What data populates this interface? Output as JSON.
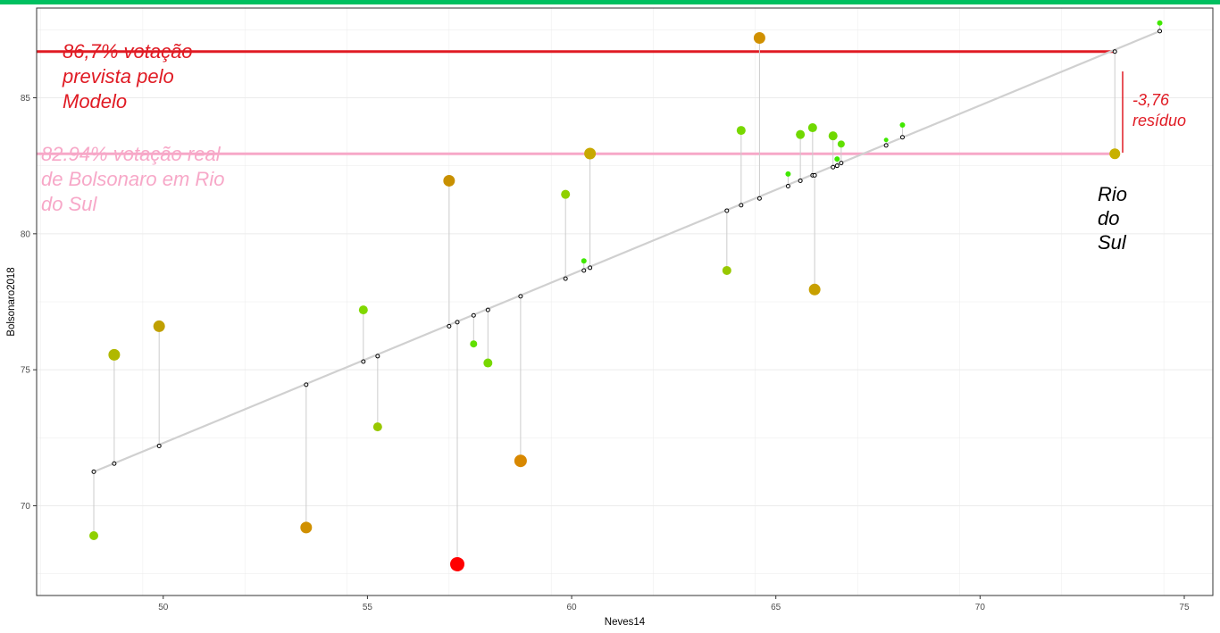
{
  "colors": {
    "top_bar": "#00c060",
    "predicted_line": "#e01b24",
    "actual_line": "#f7a8c8",
    "regression_line": "#d0d0d0",
    "residual_segment": "#cccccc",
    "grid": "#ebebeb",
    "highlight_point": "#ff0000"
  },
  "chart_data": {
    "type": "scatter",
    "title": "",
    "xlabel": "Neves14",
    "ylabel": "Bolsonaro2018",
    "xlim": [
      46.9,
      75.7
    ],
    "ylim": [
      66.7,
      88.3
    ],
    "x_ticks": [
      50,
      55,
      60,
      65,
      70,
      75
    ],
    "y_ticks": [
      70,
      75,
      80,
      85
    ],
    "x_tick_labels": [
      "50",
      "55",
      "60",
      "65",
      "70",
      "75"
    ],
    "y_tick_labels": [
      "70",
      "75",
      "80",
      "85"
    ],
    "grid": true,
    "regression": {
      "x_start": 48.3,
      "y_start": 71.25,
      "x_end": 74.4,
      "y_end": 87.45
    },
    "points": [
      {
        "x": 48.3,
        "y": 68.9,
        "fitted": 71.25,
        "color": "#8fd000",
        "size": 5
      },
      {
        "x": 48.8,
        "y": 75.55,
        "fitted": 71.55,
        "color": "#b0b800",
        "size": 6.5
      },
      {
        "x": 49.9,
        "y": 76.6,
        "fitted": 72.2,
        "color": "#c0a000",
        "size": 6.5
      },
      {
        "x": 53.5,
        "y": 69.2,
        "fitted": 74.45,
        "color": "#d09000",
        "size": 6.5
      },
      {
        "x": 54.9,
        "y": 77.2,
        "fitted": 75.3,
        "color": "#80d800",
        "size": 5
      },
      {
        "x": 55.25,
        "y": 72.9,
        "fitted": 75.5,
        "color": "#98c800",
        "size": 5
      },
      {
        "x": 57.0,
        "y": 81.95,
        "fitted": 76.6,
        "color": "#c89000",
        "size": 6.5
      },
      {
        "x": 57.2,
        "y": 67.85,
        "fitted": 76.75,
        "color": "#ff0000",
        "size": 8
      },
      {
        "x": 57.6,
        "y": 75.95,
        "fitted": 77.0,
        "color": "#60e000",
        "size": 4
      },
      {
        "x": 57.95,
        "y": 75.25,
        "fitted": 77.2,
        "color": "#78d800",
        "size": 5
      },
      {
        "x": 58.75,
        "y": 71.65,
        "fitted": 77.7,
        "color": "#d88800",
        "size": 7
      },
      {
        "x": 59.85,
        "y": 81.45,
        "fitted": 78.35,
        "color": "#90d000",
        "size": 5
      },
      {
        "x": 60.3,
        "y": 79.0,
        "fitted": 78.65,
        "color": "#40e800",
        "size": 3
      },
      {
        "x": 60.45,
        "y": 82.95,
        "fitted": 78.75,
        "color": "#c8a800",
        "size": 6.5
      },
      {
        "x": 63.8,
        "y": 78.65,
        "fitted": 80.85,
        "color": "#98c800",
        "size": 5
      },
      {
        "x": 64.15,
        "y": 83.8,
        "fitted": 81.05,
        "color": "#78d800",
        "size": 5
      },
      {
        "x": 64.6,
        "y": 87.2,
        "fitted": 81.3,
        "color": "#d09000",
        "size": 6.5
      },
      {
        "x": 65.3,
        "y": 82.2,
        "fitted": 81.75,
        "color": "#40e800",
        "size": 3
      },
      {
        "x": 65.6,
        "y": 83.65,
        "fitted": 81.95,
        "color": "#70d800",
        "size": 5
      },
      {
        "x": 65.9,
        "y": 83.9,
        "fitted": 82.15,
        "color": "#70d800",
        "size": 5
      },
      {
        "x": 65.95,
        "y": 77.95,
        "fitted": 82.15,
        "color": "#c8a000",
        "size": 6.5
      },
      {
        "x": 66.4,
        "y": 83.6,
        "fitted": 82.45,
        "color": "#70d800",
        "size": 5
      },
      {
        "x": 66.5,
        "y": 82.75,
        "fitted": 82.5,
        "color": "#40e800",
        "size": 3
      },
      {
        "x": 66.6,
        "y": 83.3,
        "fitted": 82.6,
        "color": "#60e000",
        "size": 4
      },
      {
        "x": 67.7,
        "y": 83.45,
        "fitted": 83.25,
        "color": "#40e800",
        "size": 2.5
      },
      {
        "x": 68.1,
        "y": 84.0,
        "fitted": 83.55,
        "color": "#40e800",
        "size": 3
      },
      {
        "x": 73.3,
        "y": 82.94,
        "fitted": 86.7,
        "color": "#c8b000",
        "size": 6
      },
      {
        "x": 74.4,
        "y": 87.75,
        "fitted": 87.45,
        "color": "#40e800",
        "size": 3
      }
    ],
    "reference_lines": {
      "predicted_y": 86.7,
      "actual_y": 82.94
    },
    "annotations": {
      "predicted": [
        "86,7% votação",
        "prevista pelo",
        "Modelo"
      ],
      "actual": [
        "82.94% votação real",
        "de Bolsonaro em Rio",
        "do Sul"
      ],
      "residual": [
        "-3,76",
        "resíduo"
      ],
      "city": [
        "Rio",
        "do",
        "Sul"
      ]
    }
  }
}
